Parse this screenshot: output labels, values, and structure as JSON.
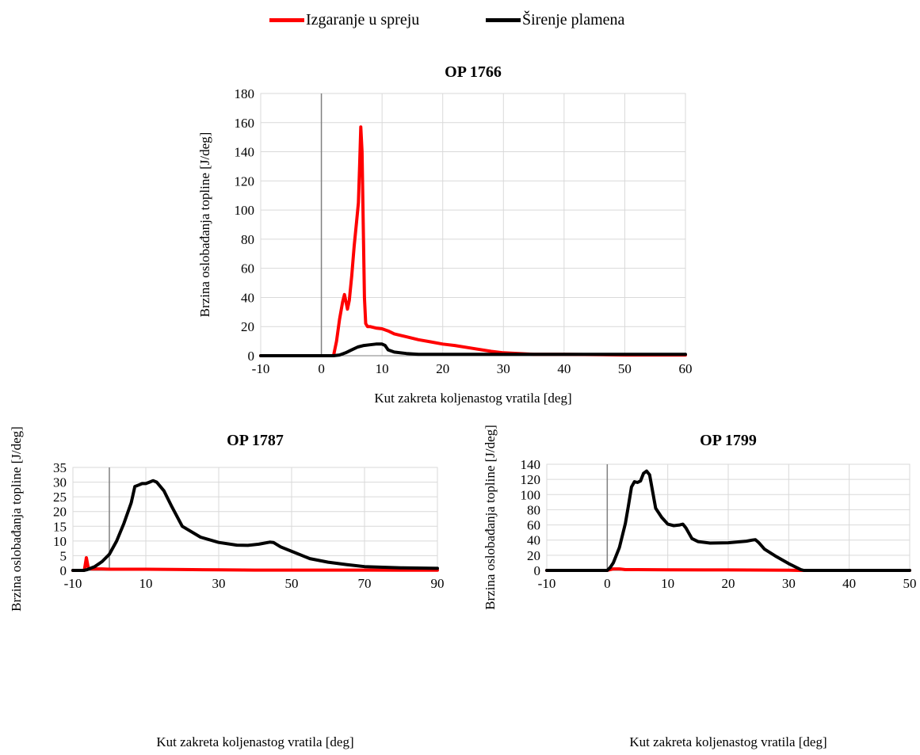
{
  "legend": {
    "spray_label": "Izgaranje u spreju",
    "flame_label": "Širenje plamena"
  },
  "colors": {
    "spray": "#ff0000",
    "flame": "#000000",
    "grid": "#d9d9d9",
    "axis": "#808080"
  },
  "chart_data": [
    {
      "type": "line",
      "title": "OP 1766",
      "xlabel": "Kut zakreta koljenastog vratila [deg]",
      "ylabel": "Brzina oslobađanja topline [J/deg]",
      "xlim": [
        -10,
        60
      ],
      "ylim": [
        0,
        180
      ],
      "xticks": [
        -10,
        0,
        10,
        20,
        30,
        40,
        50,
        60
      ],
      "yticks": [
        0,
        20,
        40,
        60,
        80,
        100,
        120,
        140,
        160,
        180
      ],
      "series": [
        {
          "name": "Izgaranje u spreju",
          "color": "#ff0000",
          "x": [
            -10,
            2,
            2.5,
            3,
            3.5,
            3.8,
            4.1,
            4.3,
            4.6,
            5,
            5.4,
            5.8,
            6.1,
            6.3,
            6.5,
            6.7,
            6.9,
            7.1,
            7.3,
            7.6,
            8,
            9,
            10,
            11,
            12,
            14,
            16,
            18,
            20,
            22,
            25,
            28,
            30,
            35,
            40,
            50,
            60
          ],
          "y": [
            0,
            0,
            10,
            25,
            37,
            42,
            36,
            32,
            38,
            55,
            75,
            92,
            105,
            130,
            157,
            140,
            90,
            40,
            22,
            20,
            20,
            19,
            18.5,
            17,
            15,
            13,
            11,
            9.5,
            8,
            7,
            5,
            3,
            2,
            1,
            1,
            0.5,
            0.5
          ]
        },
        {
          "name": "Širenje plamena",
          "color": "#000000",
          "x": [
            -10,
            2,
            3,
            4,
            5,
            6,
            7,
            8,
            9,
            10,
            10.5,
            11,
            12,
            14,
            16,
            20,
            30,
            40,
            50,
            60
          ],
          "y": [
            0,
            0,
            0.5,
            2,
            4,
            6,
            7,
            7.5,
            8,
            8,
            7,
            4,
            2.5,
            1.5,
            1,
            1,
            1,
            1,
            1,
            1
          ]
        }
      ]
    },
    {
      "type": "line",
      "title": "OP 1787",
      "xlabel": "Kut zakreta koljenastog vratila [deg]",
      "ylabel": "Brzina oslobađanja topline [J/deg]",
      "xlim": [
        -10,
        90
      ],
      "ylim": [
        0,
        35
      ],
      "xticks": [
        -10,
        10,
        30,
        50,
        70,
        90
      ],
      "yticks": [
        0,
        5,
        10,
        15,
        20,
        25,
        30,
        35
      ],
      "series": [
        {
          "name": "Izgaranje u spreju",
          "color": "#ff0000",
          "x": [
            -10,
            -7,
            -6.8,
            -6.6,
            -6.3,
            -6.1,
            -5.8,
            -5.3,
            -5,
            -4,
            -2,
            0,
            10,
            20,
            30,
            40,
            50,
            60,
            70,
            80,
            90
          ],
          "y": [
            0,
            0,
            0.5,
            2,
            4.3,
            3,
            1,
            0.6,
            0.5,
            0.5,
            0.5,
            0.4,
            0.4,
            0.3,
            0.2,
            0.1,
            0.1,
            0.1,
            0.1,
            0.05,
            0.05
          ]
        },
        {
          "name": "Širenje plamena",
          "color": "#000000",
          "x": [
            -10,
            -7,
            -6,
            -5,
            -4,
            -2,
            0,
            2,
            4,
            6,
            7,
            8,
            9,
            10,
            11,
            12,
            13,
            15,
            17,
            20,
            25,
            30,
            35,
            38,
            41,
            44,
            45,
            47,
            50,
            55,
            60,
            65,
            70,
            80,
            90
          ],
          "y": [
            0,
            0,
            0.3,
            0.8,
            1.3,
            3,
            5.5,
            10,
            16,
            23,
            28.5,
            29,
            29.5,
            29.5,
            30,
            30.5,
            30,
            27,
            22,
            15,
            11.3,
            9.5,
            8.6,
            8.5,
            8.9,
            9.6,
            9.5,
            8,
            6.5,
            4,
            2.8,
            2,
            1.3,
            0.9,
            0.7
          ]
        }
      ]
    },
    {
      "type": "line",
      "title": "OP 1799",
      "xlabel": "Kut zakreta koljenastog vratila [deg]",
      "ylabel": "Brzina oslobađanja topline [J/deg]",
      "xlim": [
        -10,
        50
      ],
      "ylim": [
        0,
        140
      ],
      "xticks": [
        -10,
        0,
        10,
        20,
        30,
        40,
        50
      ],
      "yticks": [
        0,
        20,
        40,
        60,
        80,
        100,
        120,
        140
      ],
      "series": [
        {
          "name": "Izgaranje u spreju",
          "color": "#ff0000",
          "x": [
            -10,
            0,
            0.5,
            1,
            2,
            3,
            5,
            10,
            20,
            30,
            31,
            32,
            50
          ],
          "y": [
            0,
            0,
            1,
            2,
            2,
            1,
            1,
            0.8,
            0.6,
            0.3,
            0.1,
            0,
            0
          ]
        },
        {
          "name": "Širenje plamena",
          "color": "#000000",
          "x": [
            -10,
            0,
            0.5,
            1,
            2,
            3,
            3.5,
            4,
            4.5,
            5,
            5.5,
            6,
            6.5,
            7,
            8,
            9,
            10,
            11,
            12,
            12.5,
            13,
            14,
            15,
            17,
            20,
            23,
            24,
            24.5,
            25,
            26,
            28,
            30,
            32,
            32.5,
            33,
            50
          ],
          "y": [
            0,
            0,
            4,
            10,
            30,
            62,
            85,
            110,
            117,
            116,
            118,
            128,
            131,
            126,
            82,
            70,
            61,
            59,
            60,
            61,
            56,
            42,
            38,
            36,
            36.5,
            38.5,
            40,
            40.5,
            37,
            28,
            18,
            9,
            1,
            0,
            0,
            0
          ]
        }
      ]
    }
  ]
}
